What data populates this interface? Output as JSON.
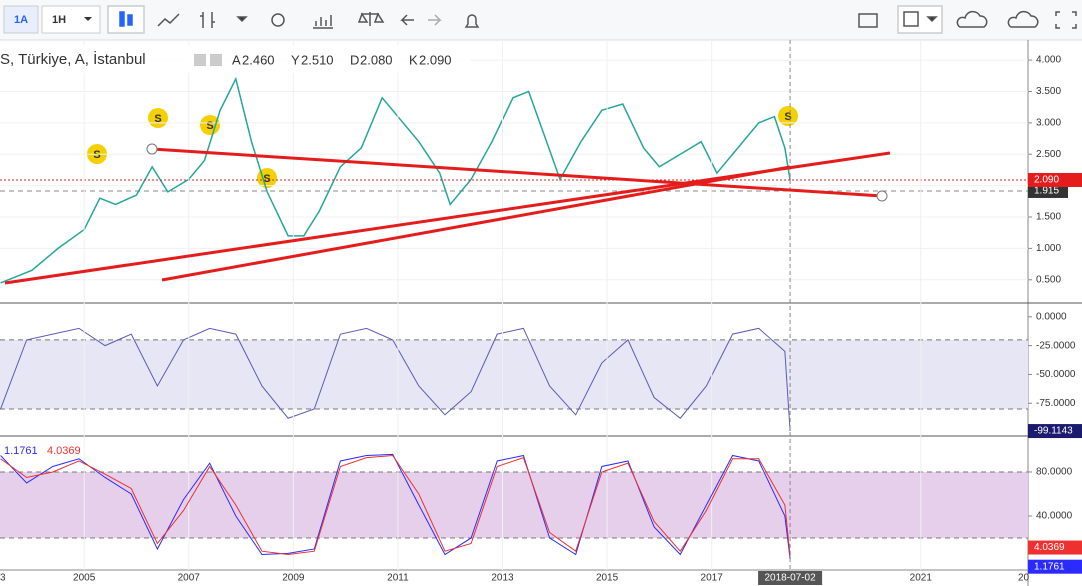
{
  "toolbar": {
    "buttons": [
      "1A",
      "1H"
    ]
  },
  "symbol": {
    "title": "S, Türkiye, A, İstanbul",
    "ohlc": [
      {
        "key": "A",
        "value": "2.460"
      },
      {
        "key": "Y",
        "value": "2.510"
      },
      {
        "key": "D",
        "value": "2.080"
      },
      {
        "key": "K",
        "value": "2.090"
      }
    ]
  },
  "split_labels": [
    "S",
    "S",
    "S",
    "S",
    "S"
  ],
  "chart_data": [
    {
      "type": "line",
      "xlim": [
        2003.39,
        2023.05
      ],
      "ylim": [
        0.13,
        4.32
      ],
      "yticks": [
        {
          "value": 0.5,
          "label": "0.500"
        },
        {
          "value": 1,
          "label": "1.000"
        },
        {
          "value": 1.5,
          "label": "1.500"
        },
        {
          "value": 2,
          "label": "2.000"
        },
        {
          "value": 2.5,
          "label": "2.500"
        },
        {
          "value": 3,
          "label": "3.000"
        },
        {
          "value": 3.5,
          "label": "3.500"
        },
        {
          "value": 4,
          "label": "4.000"
        }
      ],
      "x": [
        2003.4,
        2004,
        2004.5,
        2005,
        2005.3,
        2005.6,
        2006,
        2006.3,
        2006.6,
        2007,
        2007.3,
        2007.6,
        2007.9,
        2008.2,
        2008.5,
        2008.9,
        2009.2,
        2009.5,
        2009.9,
        2010.3,
        2010.7,
        2011,
        2011.4,
        2011.8,
        2012,
        2012.4,
        2012.8,
        2013.2,
        2013.5,
        2013.8,
        2014.1,
        2014.5,
        2014.9,
        2015.3,
        2015.7,
        2016,
        2016.4,
        2016.8,
        2017.1,
        2017.5,
        2017.9,
        2018.2,
        2018.4,
        2018.5
      ],
      "series": [
        {
          "color": "#26a69a",
          "values": [
            0.45,
            0.65,
            1.0,
            1.3,
            1.8,
            1.7,
            1.85,
            2.3,
            1.9,
            2.1,
            2.4,
            3.2,
            3.7,
            2.7,
            1.9,
            1.2,
            1.2,
            1.6,
            2.3,
            2.6,
            3.4,
            3.1,
            2.7,
            2.2,
            1.7,
            2.1,
            2.7,
            3.4,
            3.5,
            2.8,
            2.1,
            2.7,
            3.2,
            3.3,
            2.6,
            2.3,
            2.5,
            2.7,
            2.2,
            2.6,
            3.0,
            3.1,
            2.6,
            2.09
          ],
          "last_value_label": "2.090"
        }
      ],
      "reference_line": {
        "value": 1.915,
        "label": "1.915"
      }
    },
    {
      "type": "line",
      "xlim": [
        2003.39,
        2023.05
      ],
      "ylim": [
        -103.4,
        12
      ],
      "bands": [
        -80,
        -20
      ],
      "yticks": [
        {
          "value": 0,
          "label": "0.0000"
        },
        {
          "value": -25,
          "label": "-25.0000"
        },
        {
          "value": -50,
          "label": "-50.0000"
        },
        {
          "value": -75,
          "label": "-75.0000"
        }
      ],
      "x": [
        2003.4,
        2003.9,
        2004.4,
        2004.9,
        2005.4,
        2005.9,
        2006.4,
        2006.9,
        2007.4,
        2007.9,
        2008.4,
        2008.9,
        2009.4,
        2009.9,
        2010.4,
        2010.9,
        2011.4,
        2011.9,
        2012.4,
        2012.9,
        2013.4,
        2013.9,
        2014.4,
        2014.9,
        2015.4,
        2015.9,
        2016.4,
        2016.9,
        2017.4,
        2017.9,
        2018.4,
        2018.5
      ],
      "series": [
        {
          "color": "#5b5bb5",
          "values": [
            -80,
            -20,
            -15,
            -10,
            -25,
            -15,
            -60,
            -20,
            -10,
            -15,
            -60,
            -88,
            -80,
            -15,
            -10,
            -20,
            -60,
            -85,
            -65,
            -15,
            -10,
            -60,
            -85,
            -40,
            -20,
            -70,
            -88,
            -60,
            -15,
            -10,
            -30,
            -99.1143
          ],
          "last_value_label": "-99.1143"
        }
      ]
    },
    {
      "type": "line",
      "xlim": [
        2003.39,
        2023.05
      ],
      "ylim": [
        -9.1,
        112.7
      ],
      "bands": [
        20,
        80
      ],
      "yticks": [
        {
          "value": 40,
          "label": "40.0000"
        },
        {
          "value": 80,
          "label": "80.0000"
        }
      ],
      "xticks": [
        2005,
        2007,
        2009,
        2011,
        2013,
        2015,
        2017,
        2021
      ],
      "edge_labels": [
        "3",
        "20"
      ],
      "date_marker": {
        "value": 2018.5,
        "label": "2018-07-02"
      },
      "x": [
        2003.4,
        2003.9,
        2004.4,
        2004.9,
        2005.4,
        2005.9,
        2006.4,
        2006.9,
        2007.4,
        2007.9,
        2008.4,
        2008.9,
        2009.4,
        2009.9,
        2010.4,
        2010.9,
        2011.4,
        2011.9,
        2012.4,
        2012.9,
        2013.4,
        2013.9,
        2014.4,
        2014.9,
        2015.4,
        2015.9,
        2016.4,
        2016.9,
        2017.4,
        2017.9,
        2018.4,
        2018.5
      ],
      "series": [
        {
          "color": "#2b2bff",
          "values": [
            95,
            70,
            85,
            92,
            75,
            60,
            10,
            55,
            88,
            40,
            5,
            6,
            10,
            90,
            95,
            96,
            50,
            5,
            20,
            90,
            95,
            20,
            5,
            85,
            90,
            30,
            5,
            50,
            95,
            90,
            40,
            1.1761
          ],
          "last_value_label": "1.1761"
        },
        {
          "color": "#ee3030",
          "values": [
            92,
            75,
            80,
            90,
            78,
            65,
            15,
            45,
            85,
            50,
            8,
            5,
            8,
            85,
            93,
            95,
            60,
            8,
            15,
            85,
            93,
            25,
            8,
            80,
            88,
            35,
            8,
            45,
            92,
            92,
            50,
            4.0369
          ],
          "last_value_label": "4.0369"
        }
      ]
    }
  ]
}
